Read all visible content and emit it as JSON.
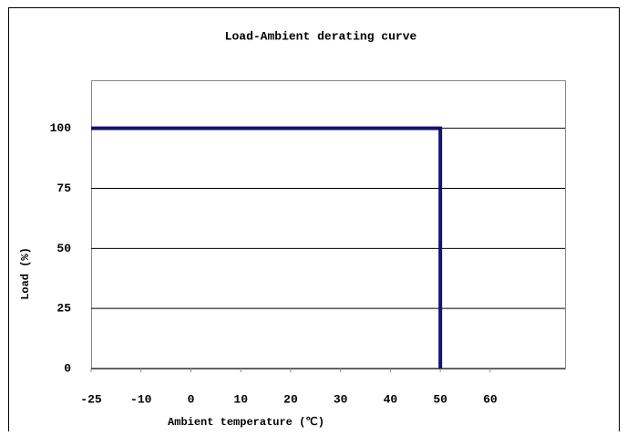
{
  "chart_data": {
    "type": "line",
    "title": "Load-Ambient derating curve",
    "x_label": "Ambient temperature (℃)",
    "y_label": "Load (%)",
    "x": [
      -25,
      50,
      50
    ],
    "series": [
      {
        "color": "#14146e",
        "values": [
          100,
          100,
          0
        ]
      }
    ],
    "xlim": [
      -25,
      75
    ],
    "xticks": [
      -25,
      -10,
      0,
      10,
      20,
      30,
      40,
      50,
      60
    ],
    "ylim": [
      0,
      120
    ],
    "yticks": [
      0,
      25,
      50,
      75,
      100
    ],
    "grid": true
  }
}
